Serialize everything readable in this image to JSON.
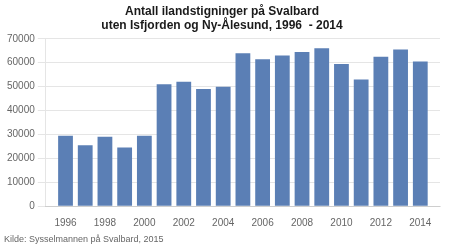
{
  "chart_data": {
    "type": "bar",
    "title": "Antall ilandstigninger på Svalbard\nuten Isfjorden og Ny-Ålesund, 1996  - 2014",
    "annotation": "Kilde: Sysselmannen på Svalbard, 2015",
    "x": [
      1996,
      1997,
      1998,
      1999,
      2000,
      2001,
      2002,
      2003,
      2004,
      2005,
      2006,
      2007,
      2008,
      2009,
      2010,
      2011,
      2012,
      2013,
      2014
    ],
    "values": [
      29500,
      25500,
      29000,
      24500,
      29500,
      51000,
      52000,
      49000,
      50000,
      64000,
      61500,
      63000,
      64500,
      66000,
      59500,
      53000,
      62500,
      65500,
      60500
    ],
    "color": "#5b7fb5",
    "xlim": [
      1995.0,
      2015.0
    ],
    "xticks": [
      1996,
      1998,
      2000,
      2002,
      2004,
      2006,
      2008,
      2010,
      2012,
      2014
    ],
    "ylim": [
      0,
      70000
    ],
    "yticks": [
      0,
      10000,
      20000,
      30000,
      40000,
      50000,
      60000,
      70000
    ],
    "grid": true
  }
}
